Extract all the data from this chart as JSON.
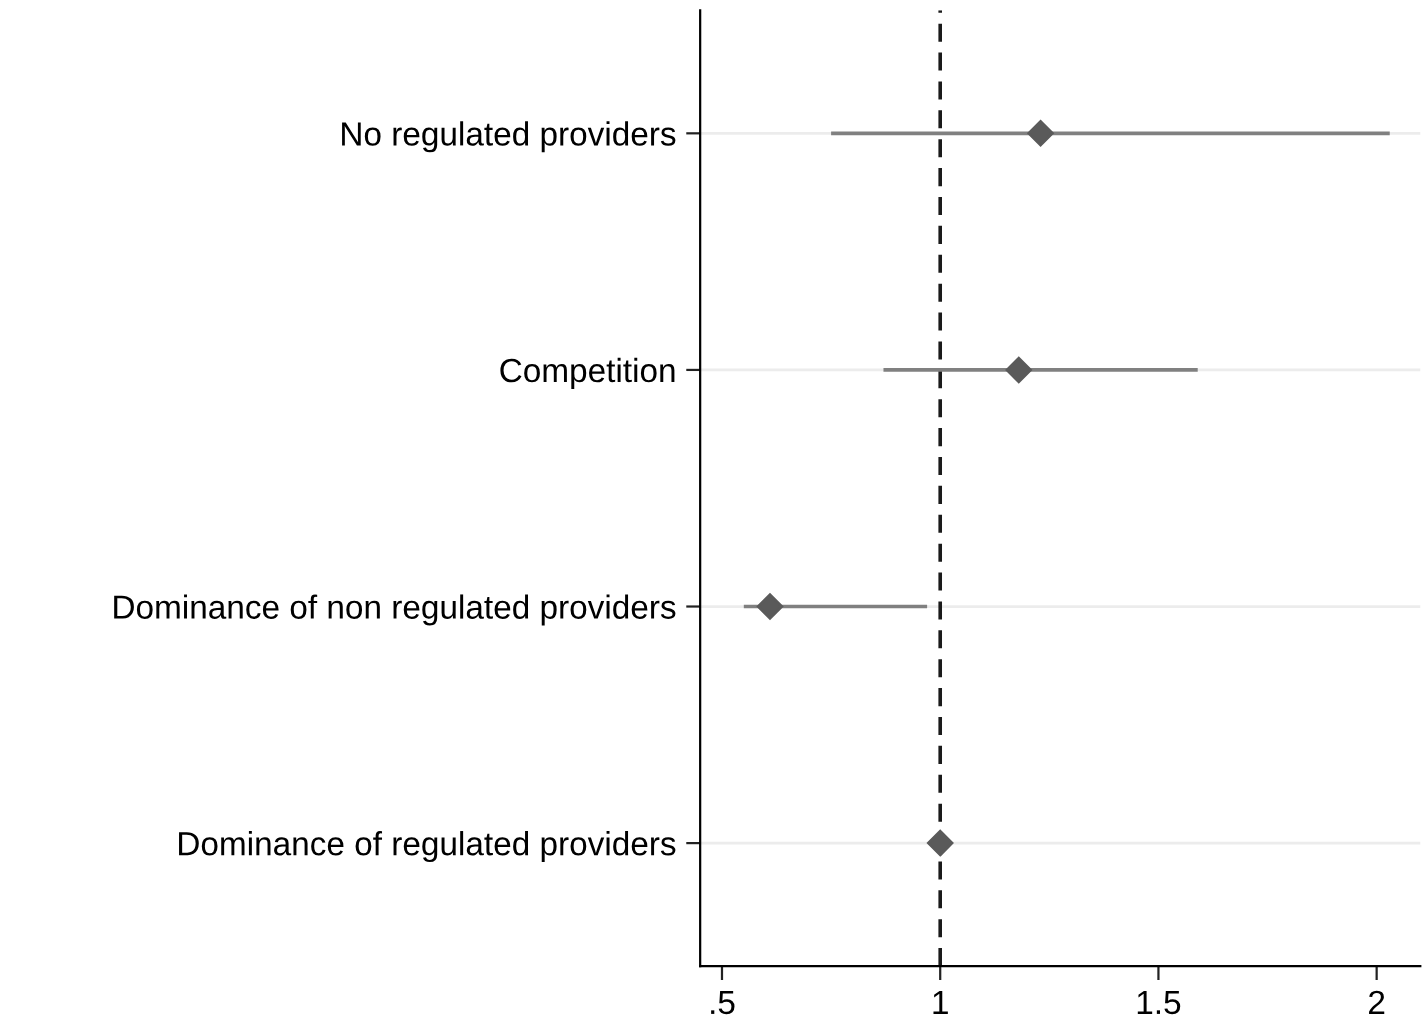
{
  "chart_data": {
    "type": "scatter",
    "orientation": "horizontal",
    "categories": [
      "No regulated providers",
      "Competition",
      "Dominance of non regulated providers",
      "Dominance of regulated providers"
    ],
    "values": [
      1.23,
      1.18,
      0.61,
      1.0
    ],
    "errors": [
      [
        0.75,
        2.03
      ],
      [
        0.87,
        1.59
      ],
      [
        0.55,
        0.97
      ],
      null
    ],
    "color": "#5a5a5a",
    "marker": "diamond",
    "xlim": [
      0.45,
      2.1
    ],
    "xticks": [
      {
        "value": 0.5,
        "label": ".5"
      },
      1,
      1.5,
      2
    ],
    "ref_lines": [
      {
        "axis": "x",
        "value": 1,
        "line_style": "dashed",
        "color": "#1a1a1a"
      }
    ],
    "grid": "y",
    "legend": false
  }
}
